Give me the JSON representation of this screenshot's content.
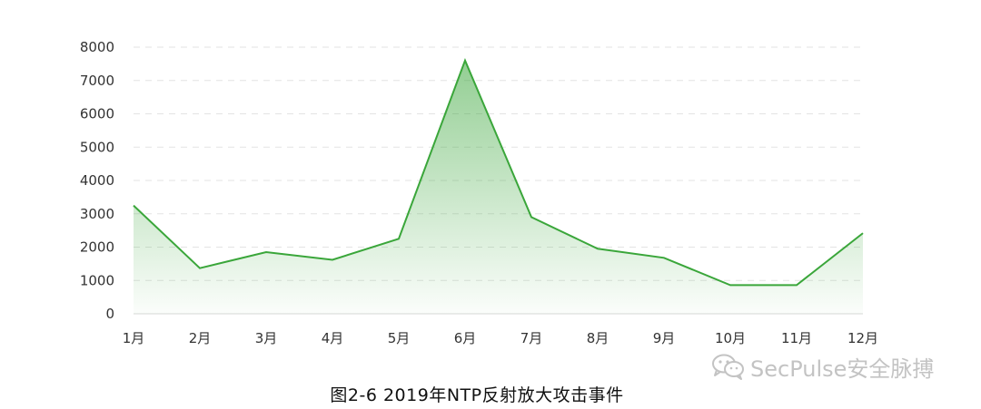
{
  "chart_data": {
    "type": "area",
    "categories": [
      "1月",
      "2月",
      "3月",
      "4月",
      "5月",
      "6月",
      "7月",
      "8月",
      "9月",
      "10月",
      "11月",
      "12月"
    ],
    "series": [
      {
        "values": [
          3250,
          1370,
          1850,
          1620,
          2250,
          7600,
          2900,
          1950,
          1680,
          860,
          860,
          2420
        ]
      }
    ],
    "ylim": [
      0,
      8000
    ],
    "yticks": [
      0,
      1000,
      2000,
      3000,
      4000,
      5000,
      6000,
      7000,
      8000
    ],
    "grid": true,
    "line_color": "#3aa63a",
    "fill_color": "#3aa63a"
  },
  "caption": "图2-6  2019年NTP反射放大攻击事件",
  "watermark": {
    "text": "SecPulse安全脉搏",
    "icon": "wechat-icon"
  }
}
